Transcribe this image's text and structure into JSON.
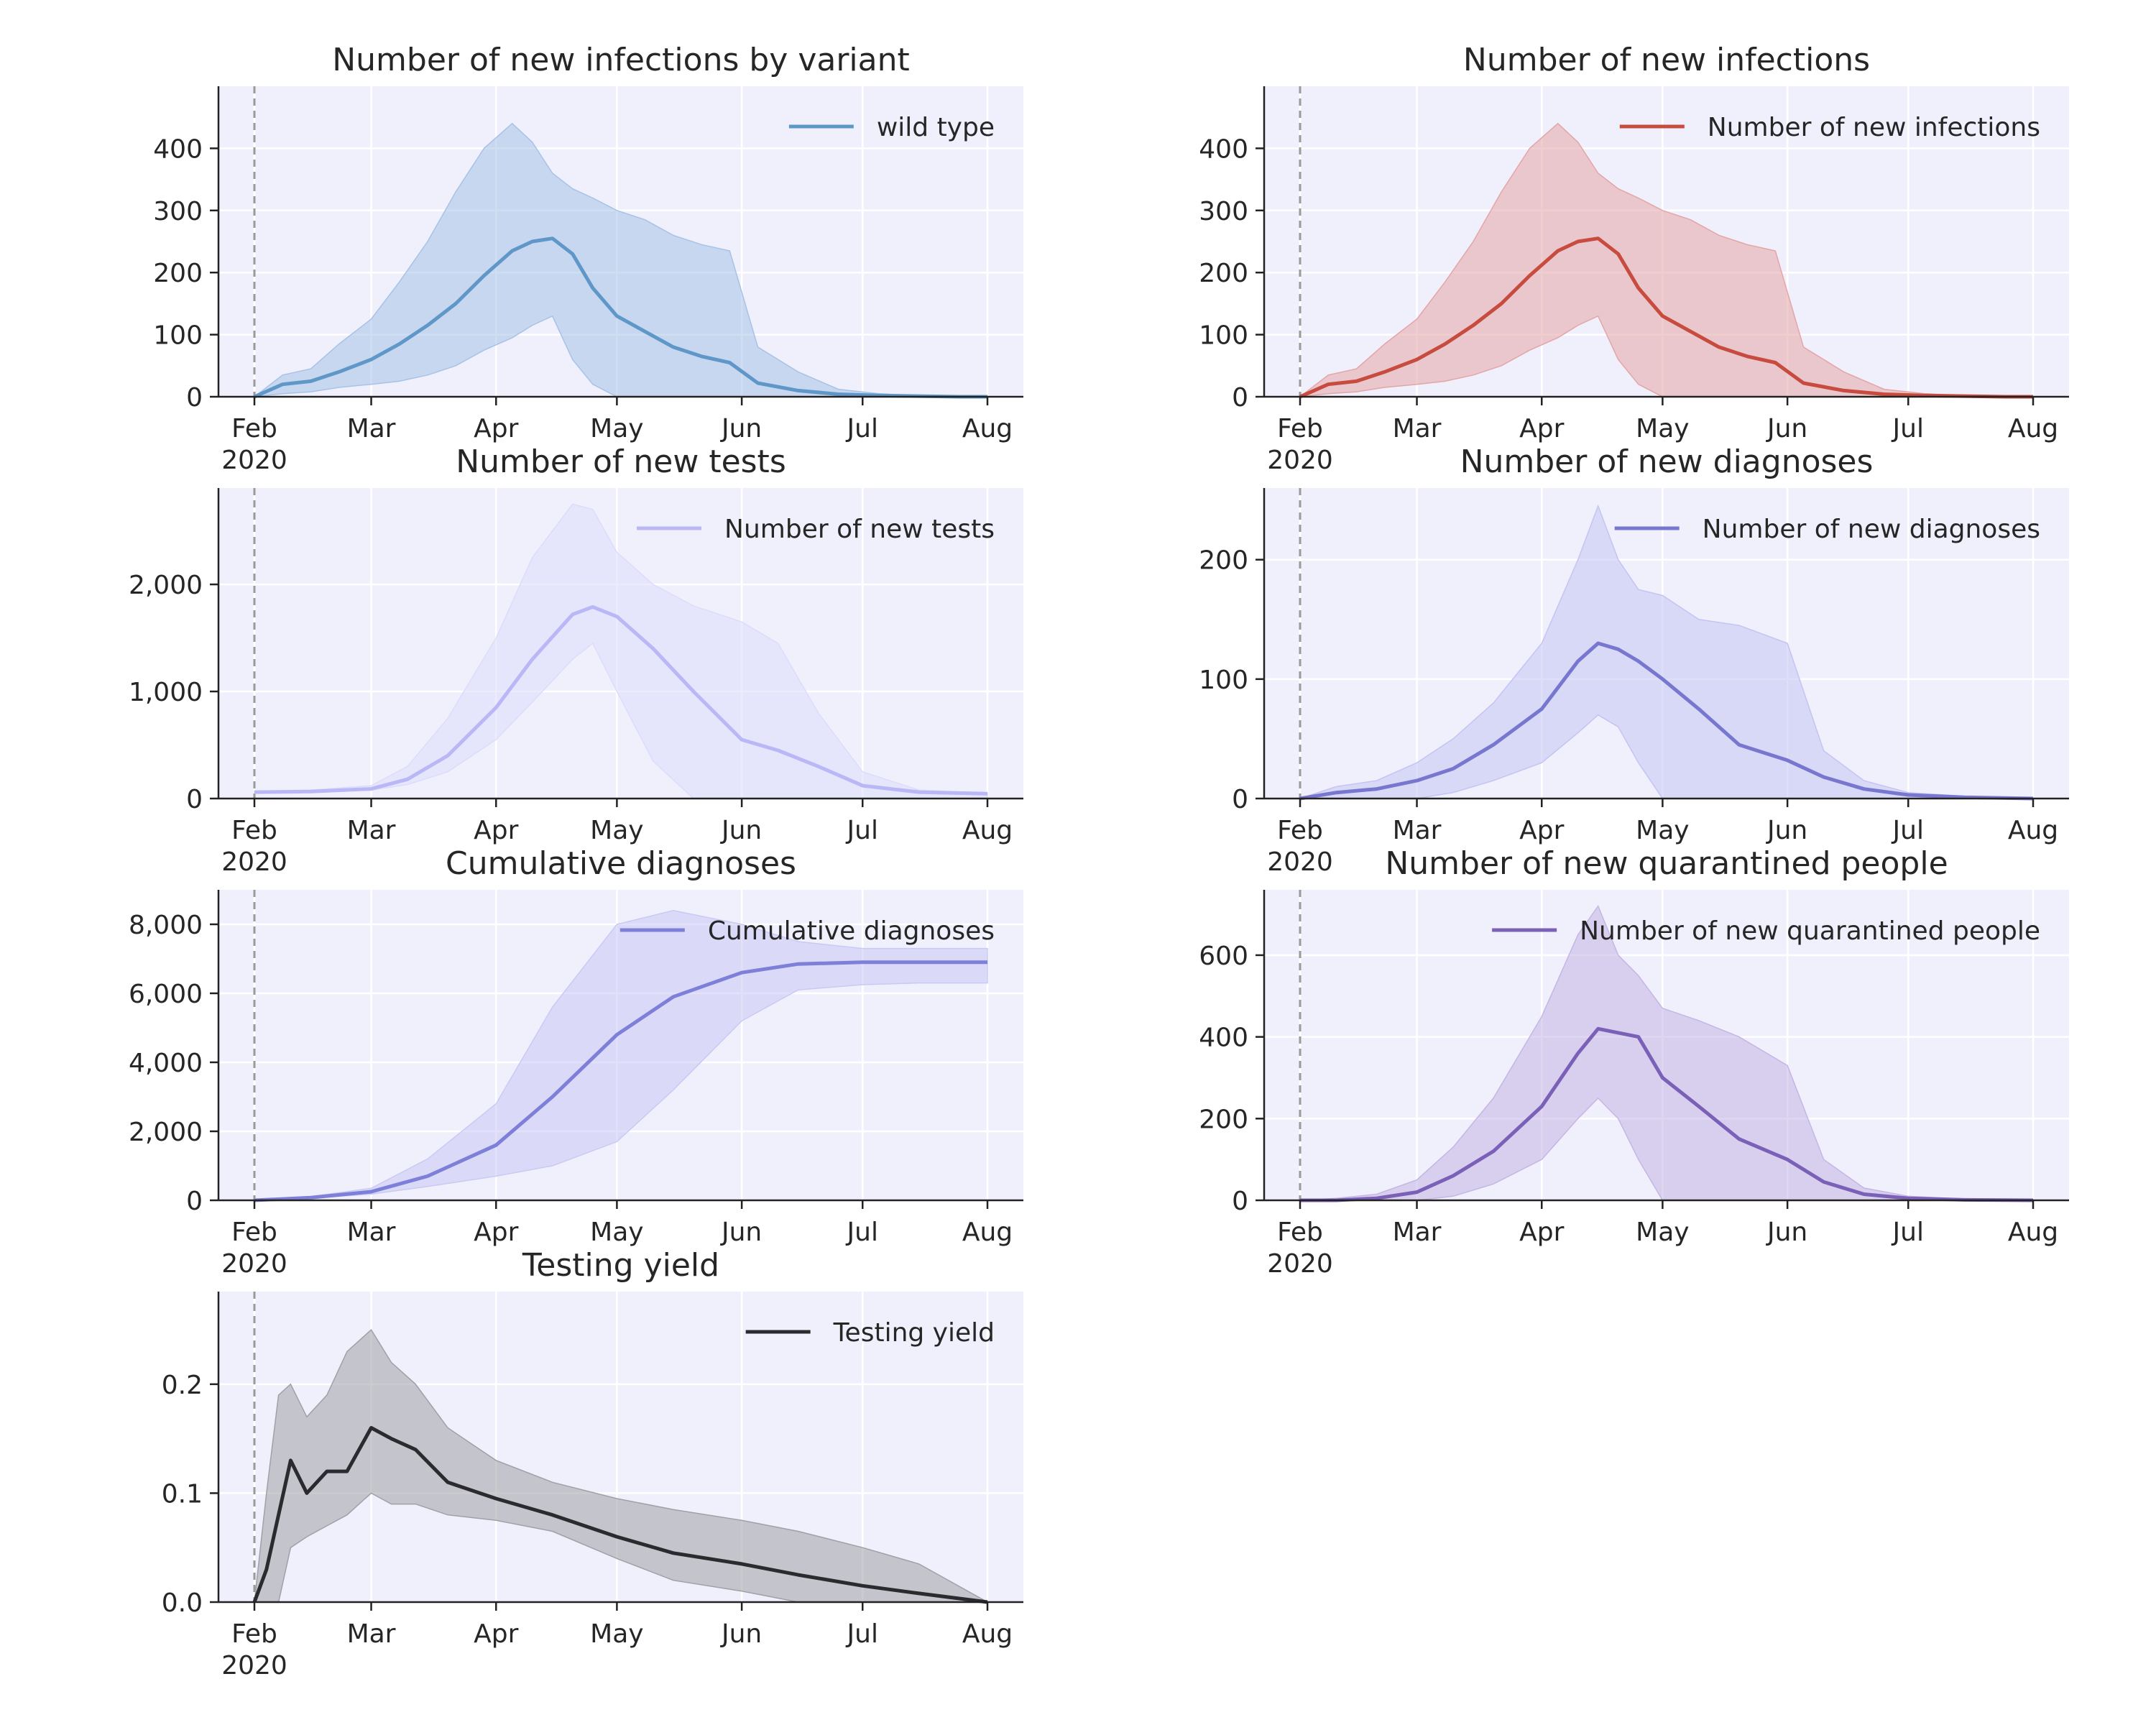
{
  "figure": {
    "x_tick_labels": [
      "Feb",
      "Mar",
      "Apr",
      "May",
      "Jun",
      "Jul",
      "Aug"
    ],
    "x_year_label": "2020",
    "date_range": [
      "2020-02-01",
      "2020-08-01"
    ],
    "reference_line_date": "2020-02-01",
    "axes_background": "#f0f0fd",
    "grid": true
  },
  "chart_data": [
    {
      "type": "area",
      "title": "Number of new infections by variant",
      "legend": "top-right",
      "ylim": [
        0,
        500
      ],
      "yticks": [
        0,
        100,
        200,
        300,
        400
      ],
      "ytick_labels": [
        "0",
        "100",
        "200",
        "300",
        "400"
      ],
      "color": "#6097c9",
      "band_color": "#a7c2e6",
      "series": [
        {
          "name": "wild type",
          "x": [
            "2020-02-01",
            "2020-02-08",
            "2020-02-15",
            "2020-02-22",
            "2020-03-01",
            "2020-03-08",
            "2020-03-15",
            "2020-03-22",
            "2020-03-29",
            "2020-04-05",
            "2020-04-10",
            "2020-04-15",
            "2020-04-20",
            "2020-04-25",
            "2020-05-01",
            "2020-05-08",
            "2020-05-15",
            "2020-05-22",
            "2020-05-29",
            "2020-06-05",
            "2020-06-15",
            "2020-06-25",
            "2020-07-05",
            "2020-07-15",
            "2020-07-25",
            "2020-08-01"
          ],
          "y": [
            0,
            20,
            25,
            40,
            60,
            85,
            115,
            150,
            195,
            235,
            250,
            255,
            230,
            175,
            130,
            105,
            80,
            65,
            55,
            22,
            10,
            4,
            2,
            1,
            0,
            0
          ],
          "lower": [
            0,
            5,
            8,
            15,
            20,
            25,
            35,
            50,
            75,
            95,
            115,
            130,
            60,
            20,
            0,
            0,
            0,
            0,
            0,
            0,
            0,
            0,
            0,
            0,
            0,
            0
          ],
          "upper": [
            0,
            35,
            45,
            85,
            125,
            185,
            250,
            330,
            400,
            440,
            410,
            360,
            335,
            320,
            300,
            285,
            260,
            245,
            235,
            80,
            40,
            12,
            5,
            2,
            0,
            0
          ]
        }
      ]
    },
    {
      "type": "area",
      "title": "Number of new infections",
      "legend": "top-right",
      "ylim": [
        0,
        500
      ],
      "yticks": [
        0,
        100,
        200,
        300,
        400
      ],
      "ytick_labels": [
        "0",
        "100",
        "200",
        "300",
        "400"
      ],
      "color": "#c74b3f",
      "band_color": "#e4a5a6",
      "series": [
        {
          "name": "Number of new infections",
          "x": [
            "2020-02-01",
            "2020-02-08",
            "2020-02-15",
            "2020-02-22",
            "2020-03-01",
            "2020-03-08",
            "2020-03-15",
            "2020-03-22",
            "2020-03-29",
            "2020-04-05",
            "2020-04-10",
            "2020-04-15",
            "2020-04-20",
            "2020-04-25",
            "2020-05-01",
            "2020-05-08",
            "2020-05-15",
            "2020-05-22",
            "2020-05-29",
            "2020-06-05",
            "2020-06-15",
            "2020-06-25",
            "2020-07-05",
            "2020-07-15",
            "2020-07-25",
            "2020-08-01"
          ],
          "y": [
            0,
            20,
            25,
            40,
            60,
            85,
            115,
            150,
            195,
            235,
            250,
            255,
            230,
            175,
            130,
            105,
            80,
            65,
            55,
            22,
            10,
            4,
            2,
            1,
            0,
            0
          ],
          "lower": [
            0,
            5,
            8,
            15,
            20,
            25,
            35,
            50,
            75,
            95,
            115,
            130,
            60,
            20,
            0,
            0,
            0,
            0,
            0,
            0,
            0,
            0,
            0,
            0,
            0,
            0
          ],
          "upper": [
            0,
            35,
            45,
            85,
            125,
            185,
            250,
            330,
            400,
            440,
            410,
            360,
            335,
            320,
            300,
            285,
            260,
            245,
            235,
            80,
            40,
            12,
            5,
            2,
            0,
            0
          ]
        }
      ]
    },
    {
      "type": "area",
      "title": "Number of new tests",
      "legend": "top-right",
      "ylim": [
        0,
        2900
      ],
      "yticks": [
        0,
        1000,
        2000
      ],
      "ytick_labels": [
        "0",
        "1,000",
        "2,000"
      ],
      "color": "#b9b7f5",
      "band_color": "#dcdcfc",
      "series": [
        {
          "name": "Number of new tests",
          "x": [
            "2020-02-01",
            "2020-02-15",
            "2020-03-01",
            "2020-03-10",
            "2020-03-20",
            "2020-04-01",
            "2020-04-10",
            "2020-04-20",
            "2020-04-25",
            "2020-05-01",
            "2020-05-10",
            "2020-05-20",
            "2020-06-01",
            "2020-06-10",
            "2020-06-20",
            "2020-07-01",
            "2020-07-15",
            "2020-08-01"
          ],
          "y": [
            60,
            65,
            90,
            180,
            400,
            850,
            1300,
            1720,
            1790,
            1700,
            1400,
            1000,
            550,
            450,
            300,
            120,
            60,
            45
          ],
          "lower": [
            60,
            60,
            80,
            130,
            250,
            550,
            900,
            1300,
            1450,
            1000,
            350,
            0,
            0,
            0,
            0,
            0,
            0,
            0
          ],
          "upper": [
            70,
            80,
            120,
            300,
            750,
            1500,
            2250,
            2750,
            2700,
            2300,
            2000,
            1800,
            1650,
            1450,
            800,
            250,
            80,
            50
          ]
        }
      ]
    },
    {
      "type": "area",
      "title": "Number of new diagnoses",
      "legend": "top-right",
      "ylim": [
        0,
        260
      ],
      "yticks": [
        0,
        100,
        200
      ],
      "ytick_labels": [
        "0",
        "100",
        "200"
      ],
      "color": "#7777cf",
      "band_color": "#c4c4f3",
      "series": [
        {
          "name": "Number of new diagnoses",
          "x": [
            "2020-02-01",
            "2020-02-10",
            "2020-02-20",
            "2020-03-01",
            "2020-03-10",
            "2020-03-20",
            "2020-04-01",
            "2020-04-10",
            "2020-04-15",
            "2020-04-20",
            "2020-04-25",
            "2020-05-01",
            "2020-05-10",
            "2020-05-20",
            "2020-06-01",
            "2020-06-10",
            "2020-06-20",
            "2020-07-01",
            "2020-07-15",
            "2020-08-01"
          ],
          "y": [
            0,
            5,
            8,
            15,
            25,
            45,
            75,
            115,
            130,
            125,
            115,
            100,
            75,
            45,
            32,
            18,
            8,
            3,
            1,
            0
          ],
          "lower": [
            0,
            0,
            0,
            0,
            5,
            15,
            30,
            55,
            70,
            60,
            30,
            0,
            0,
            0,
            0,
            0,
            0,
            0,
            0,
            0
          ],
          "upper": [
            0,
            10,
            15,
            30,
            50,
            80,
            130,
            200,
            245,
            200,
            175,
            170,
            150,
            145,
            130,
            40,
            15,
            5,
            2,
            0
          ]
        }
      ]
    },
    {
      "type": "area",
      "title": "Cumulative diagnoses",
      "legend": "top-right",
      "ylim": [
        0,
        9000
      ],
      "yticks": [
        0,
        2000,
        4000,
        6000,
        8000
      ],
      "ytick_labels": [
        "0",
        "2,000",
        "4,000",
        "6,000",
        "8,000"
      ],
      "color": "#7d7fd9",
      "band_color": "#c9c9f4",
      "series": [
        {
          "name": "Cumulative diagnoses",
          "x": [
            "2020-02-01",
            "2020-02-15",
            "2020-03-01",
            "2020-03-15",
            "2020-04-01",
            "2020-04-15",
            "2020-05-01",
            "2020-05-15",
            "2020-06-01",
            "2020-06-15",
            "2020-07-01",
            "2020-07-15",
            "2020-08-01"
          ],
          "y": [
            0,
            80,
            250,
            700,
            1600,
            3000,
            4800,
            5900,
            6600,
            6850,
            6900,
            6900,
            6900
          ],
          "lower": [
            0,
            60,
            180,
            400,
            700,
            1000,
            1700,
            3200,
            5200,
            6100,
            6250,
            6300,
            6300
          ],
          "upper": [
            0,
            110,
            350,
            1200,
            2800,
            5600,
            8000,
            8400,
            8000,
            7500,
            7300,
            7300,
            7300
          ]
        }
      ]
    },
    {
      "type": "area",
      "title": "Number of new quarantined people",
      "legend": "top-right",
      "ylim": [
        0,
        760
      ],
      "yticks": [
        0,
        200,
        400,
        600
      ],
      "ytick_labels": [
        "0",
        "200",
        "400",
        "600"
      ],
      "color": "#7a60b6",
      "band_color": "#c5b5e4",
      "series": [
        {
          "name": "Number of new quarantined people",
          "x": [
            "2020-02-01",
            "2020-02-10",
            "2020-02-20",
            "2020-03-01",
            "2020-03-10",
            "2020-03-20",
            "2020-04-01",
            "2020-04-10",
            "2020-04-15",
            "2020-04-20",
            "2020-04-25",
            "2020-05-01",
            "2020-05-10",
            "2020-05-20",
            "2020-06-01",
            "2020-06-10",
            "2020-06-20",
            "2020-07-01",
            "2020-07-15",
            "2020-08-01"
          ],
          "y": [
            0,
            0,
            5,
            20,
            60,
            120,
            230,
            360,
            420,
            410,
            400,
            300,
            230,
            150,
            100,
            45,
            15,
            5,
            1,
            0
          ],
          "lower": [
            0,
            0,
            0,
            0,
            10,
            40,
            100,
            200,
            250,
            200,
            100,
            0,
            0,
            0,
            0,
            0,
            0,
            0,
            0,
            0
          ],
          "upper": [
            0,
            5,
            15,
            50,
            130,
            250,
            450,
            650,
            720,
            600,
            550,
            470,
            440,
            400,
            330,
            100,
            30,
            10,
            3,
            0
          ]
        }
      ]
    },
    {
      "type": "area",
      "title": "Testing yield",
      "legend": "top-right",
      "ylim": [
        0,
        0.285
      ],
      "yticks": [
        0,
        0.1,
        0.2
      ],
      "ytick_labels": [
        "0.0",
        "0.1",
        "0.2"
      ],
      "color": "#2b2b2f",
      "band_color": "#a0a0a6",
      "series": [
        {
          "name": "Testing yield",
          "x": [
            "2020-02-01",
            "2020-02-04",
            "2020-02-07",
            "2020-02-10",
            "2020-02-14",
            "2020-02-19",
            "2020-02-24",
            "2020-03-01",
            "2020-03-06",
            "2020-03-12",
            "2020-03-20",
            "2020-04-01",
            "2020-04-15",
            "2020-05-01",
            "2020-05-15",
            "2020-06-01",
            "2020-06-15",
            "2020-07-01",
            "2020-07-15",
            "2020-08-01"
          ],
          "y": [
            0,
            0.03,
            0.08,
            0.13,
            0.1,
            0.12,
            0.12,
            0.16,
            0.15,
            0.14,
            0.11,
            0.095,
            0.08,
            0.06,
            0.045,
            0.035,
            0.025,
            0.015,
            0.008,
            0
          ],
          "lower": [
            0,
            0,
            0,
            0.05,
            0.06,
            0.07,
            0.08,
            0.1,
            0.09,
            0.09,
            0.08,
            0.075,
            0.065,
            0.04,
            0.02,
            0.01,
            0,
            0,
            0,
            0
          ],
          "upper": [
            0,
            0.1,
            0.19,
            0.2,
            0.17,
            0.19,
            0.23,
            0.25,
            0.22,
            0.2,
            0.16,
            0.13,
            0.11,
            0.095,
            0.085,
            0.075,
            0.065,
            0.05,
            0.035,
            0
          ]
        }
      ]
    }
  ]
}
